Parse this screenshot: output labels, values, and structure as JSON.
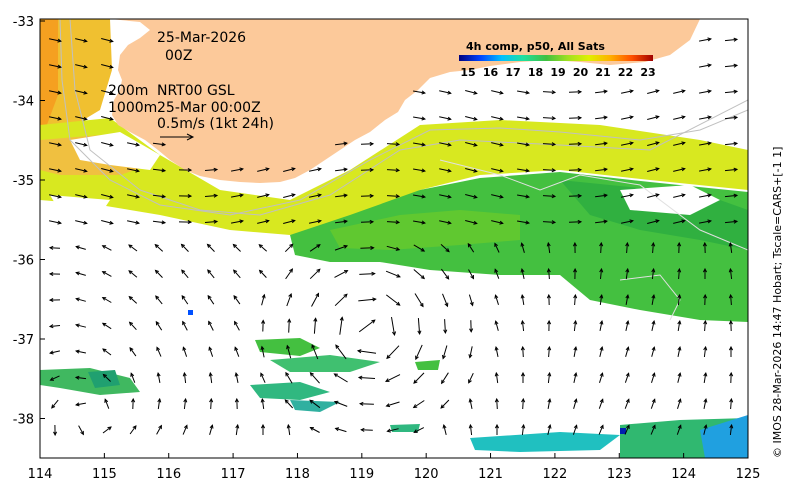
{
  "map": {
    "date_label": "25-Mar-2026",
    "time_label": "00Z",
    "depth_label": "200m",
    "product_label": "NRT00 GSL",
    "contour_label": "1000m",
    "field_time": "25-Mar 00:00Z",
    "scale_label": "0.5m/s (1kt 24h)",
    "credit": "© IMOS 28-Mar-2026 14:47 Hobart; Tscale=CARS+[-1 1]",
    "x_ticks": [
      "114",
      "115",
      "116",
      "117",
      "118",
      "119",
      "120",
      "121",
      "122",
      "123",
      "124",
      "125"
    ],
    "y_ticks": [
      "-33",
      "-34",
      "-35",
      "-36",
      "-37",
      "-38"
    ],
    "land_color": "#fcc99a",
    "colorbar": {
      "title": "4h comp, p50, All Sats",
      "ticks": [
        "15",
        "16",
        "17",
        "18",
        "19",
        "20",
        "21",
        "22",
        "23"
      ],
      "colors": [
        "#00007f",
        "#0044ff",
        "#00c0ff",
        "#20e0a0",
        "#40c040",
        "#a0e020",
        "#e0f000",
        "#ffb000",
        "#ff5000",
        "#a00000"
      ]
    }
  }
}
